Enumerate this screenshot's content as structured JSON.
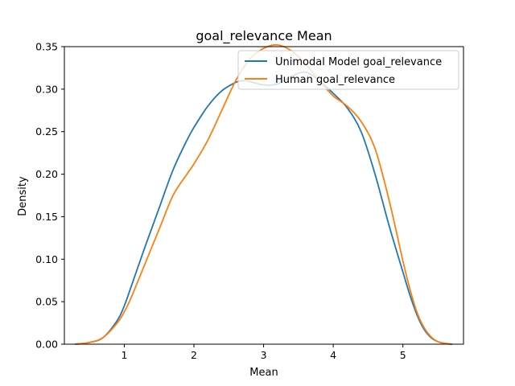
{
  "chart_data": {
    "type": "line",
    "title": "goal_relevance Mean",
    "xlabel": "Mean",
    "ylabel": "Density",
    "xlim": [
      0.14,
      5.87
    ],
    "ylim": [
      0.0,
      0.35
    ],
    "xticks": [
      "1",
      "2",
      "3",
      "4",
      "5"
    ],
    "yticks": [
      "0.00",
      "0.05",
      "0.10",
      "0.15",
      "0.20",
      "0.25",
      "0.30",
      "0.35"
    ],
    "grid": false,
    "legend_position": "top-right",
    "series": [
      {
        "name": "Unimodal Model goal_relevance",
        "color": "#1f77b4",
        "x": [
          0.3,
          0.5,
          0.7,
          0.9,
          1.0,
          1.1,
          1.3,
          1.5,
          1.7,
          1.9,
          2.0,
          2.2,
          2.4,
          2.6,
          2.7,
          2.8,
          3.0,
          3.2,
          3.4,
          3.6,
          3.8,
          4.0,
          4.2,
          4.4,
          4.6,
          4.8,
          5.0,
          5.1,
          5.2,
          5.3,
          5.4,
          5.5,
          5.6,
          5.7
        ],
        "y": [
          0.0,
          0.002,
          0.008,
          0.028,
          0.045,
          0.068,
          0.115,
          0.16,
          0.205,
          0.24,
          0.255,
          0.28,
          0.298,
          0.308,
          0.31,
          0.309,
          0.305,
          0.306,
          0.315,
          0.32,
          0.31,
          0.295,
          0.278,
          0.25,
          0.2,
          0.14,
          0.085,
          0.058,
          0.035,
          0.018,
          0.008,
          0.003,
          0.001,
          0.0
        ]
      },
      {
        "name": "Human goal_relevance",
        "color": "#ff7f0e",
        "x": [
          0.3,
          0.5,
          0.7,
          0.9,
          1.0,
          1.1,
          1.3,
          1.5,
          1.7,
          1.9,
          2.0,
          2.2,
          2.4,
          2.6,
          2.8,
          3.0,
          3.2,
          3.4,
          3.6,
          3.8,
          4.0,
          4.2,
          4.4,
          4.6,
          4.8,
          5.0,
          5.1,
          5.2,
          5.3,
          5.4,
          5.5,
          5.6,
          5.7
        ],
        "y": [
          0.0,
          0.002,
          0.008,
          0.025,
          0.038,
          0.055,
          0.095,
          0.135,
          0.175,
          0.2,
          0.212,
          0.24,
          0.275,
          0.31,
          0.335,
          0.348,
          0.352,
          0.345,
          0.33,
          0.31,
          0.292,
          0.28,
          0.262,
          0.23,
          0.17,
          0.098,
          0.065,
          0.038,
          0.02,
          0.009,
          0.003,
          0.001,
          0.0
        ]
      }
    ]
  }
}
